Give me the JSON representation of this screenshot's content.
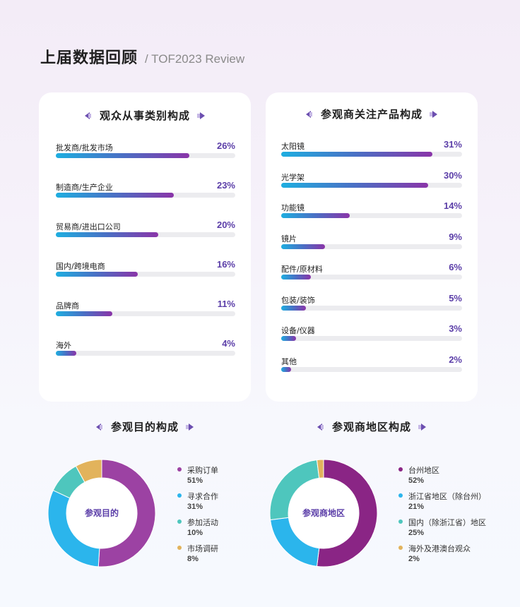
{
  "header": {
    "title": "上届数据回顾",
    "subtitle": "/ TOF2023 Review"
  },
  "colors": {
    "accent": "#5b3ea8",
    "bar_start": "#1eaee0",
    "bar_end": "#8a34a8"
  },
  "chart_data": [
    {
      "type": "bar",
      "title": "观众从事类别构成",
      "categories": [
        "批发商/批发市场",
        "制造商/生产企业",
        "贸易商/进出口公司",
        "国内/跨境电商",
        "品牌商",
        "海外"
      ],
      "values": [
        26,
        23,
        20,
        16,
        11,
        4
      ],
      "labels": [
        "26%",
        "23%",
        "20%",
        "16%",
        "11%",
        "4%"
      ],
      "max": 35
    },
    {
      "type": "bar",
      "title": "参观商关注产品构成",
      "categories": [
        "太阳镜",
        "光学架",
        "功能镜",
        "镜片",
        "配件/原材料",
        "包装/装饰",
        "设备/仪器",
        "其他"
      ],
      "values": [
        31,
        30,
        14,
        9,
        6,
        5,
        3,
        2
      ],
      "labels": [
        "31%",
        "30%",
        "14%",
        "9%",
        "6%",
        "5%",
        "3%",
        "2%"
      ],
      "max": 37
    },
    {
      "type": "pie",
      "title": "参观目的构成",
      "center_label": "参观目的",
      "categories": [
        "采购订单",
        "寻求合作",
        "参加活动",
        "市场调研"
      ],
      "values": [
        51,
        31,
        10,
        8
      ],
      "labels": [
        "51%",
        "31%",
        "10%",
        "8%"
      ],
      "colors": [
        "#9c42a3",
        "#2bb5ec",
        "#4ec6bd",
        "#e2b35c"
      ]
    },
    {
      "type": "pie",
      "title": "参观商地区构成",
      "center_label": "参观商地区",
      "categories": [
        "台州地区",
        "浙江省地区（除台州）",
        "国内（除浙江省）地区",
        "海外及港澳台观众"
      ],
      "values": [
        52,
        21,
        25,
        2
      ],
      "labels": [
        "52%",
        "21%",
        "25%",
        "2%"
      ],
      "colors": [
        "#8a2585",
        "#2bb5ec",
        "#4ec6bd",
        "#e2b35c"
      ]
    }
  ]
}
